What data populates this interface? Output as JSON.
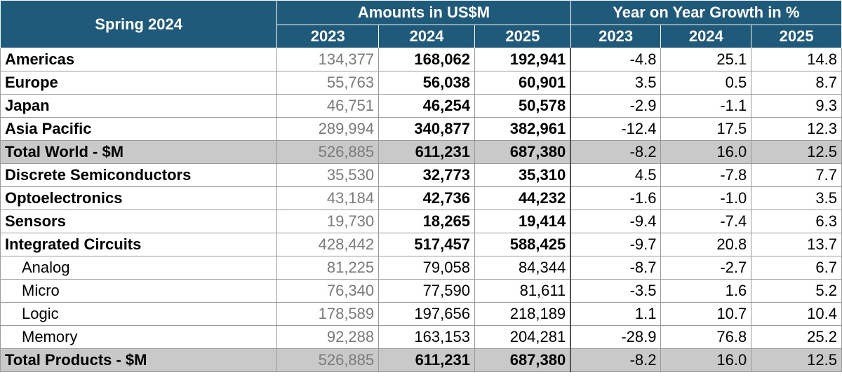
{
  "header": {
    "title": "Spring 2024",
    "amounts_heading": "Amounts in US$M",
    "growth_heading": "Year on Year Growth in %",
    "years": [
      "2023",
      "2024",
      "2025"
    ]
  },
  "rows": [
    {
      "label": "Americas",
      "amounts": [
        "134,377",
        "168,062",
        "192,941"
      ],
      "growth": [
        "-4.8",
        "25.1",
        "14.8"
      ]
    },
    {
      "label": "Europe",
      "amounts": [
        "55,763",
        "56,038",
        "60,901"
      ],
      "growth": [
        "3.5",
        "0.5",
        "8.7"
      ]
    },
    {
      "label": "Japan",
      "amounts": [
        "46,751",
        "46,254",
        "50,578"
      ],
      "growth": [
        "-2.9",
        "-1.1",
        "9.3"
      ]
    },
    {
      "label": "Asia Pacific",
      "amounts": [
        "289,994",
        "340,877",
        "382,961"
      ],
      "growth": [
        "-12.4",
        "17.5",
        "12.3"
      ]
    },
    {
      "label": "Total World - $M",
      "amounts": [
        "526,885",
        "611,231",
        "687,380"
      ],
      "growth": [
        "-8.2",
        "16.0",
        "12.5"
      ]
    },
    {
      "label": "Discrete Semiconductors",
      "amounts": [
        "35,530",
        "32,773",
        "35,310"
      ],
      "growth": [
        "4.5",
        "-7.8",
        "7.7"
      ]
    },
    {
      "label": "Optoelectronics",
      "amounts": [
        "43,184",
        "42,736",
        "44,232"
      ],
      "growth": [
        "-1.6",
        "-1.0",
        "3.5"
      ]
    },
    {
      "label": "Sensors",
      "amounts": [
        "19,730",
        "18,265",
        "19,414"
      ],
      "growth": [
        "-9.4",
        "-7.4",
        "6.3"
      ]
    },
    {
      "label": "Integrated Circuits",
      "amounts": [
        "428,442",
        "517,457",
        "588,425"
      ],
      "growth": [
        "-9.7",
        "20.8",
        "13.7"
      ]
    },
    {
      "label": "Analog",
      "amounts": [
        "81,225",
        "79,058",
        "84,344"
      ],
      "growth": [
        "-8.7",
        "-2.7",
        "6.7"
      ]
    },
    {
      "label": "Micro",
      "amounts": [
        "76,340",
        "77,590",
        "81,611"
      ],
      "growth": [
        "-3.5",
        "1.6",
        "5.2"
      ]
    },
    {
      "label": "Logic",
      "amounts": [
        "178,589",
        "197,656",
        "218,189"
      ],
      "growth": [
        "1.1",
        "10.7",
        "10.4"
      ]
    },
    {
      "label": "Memory",
      "amounts": [
        "92,288",
        "163,153",
        "204,281"
      ],
      "growth": [
        "-28.9",
        "76.8",
        "25.2"
      ]
    },
    {
      "label": "Total Products - $M",
      "amounts": [
        "526,885",
        "611,231",
        "687,380"
      ],
      "growth": [
        "-8.2",
        "16.0",
        "12.5"
      ]
    }
  ],
  "styles": {
    "header_bg": "#1f5a7a",
    "total_row_bg": "#c9c9c9",
    "prior_year_text": "#7a7a7a"
  }
}
